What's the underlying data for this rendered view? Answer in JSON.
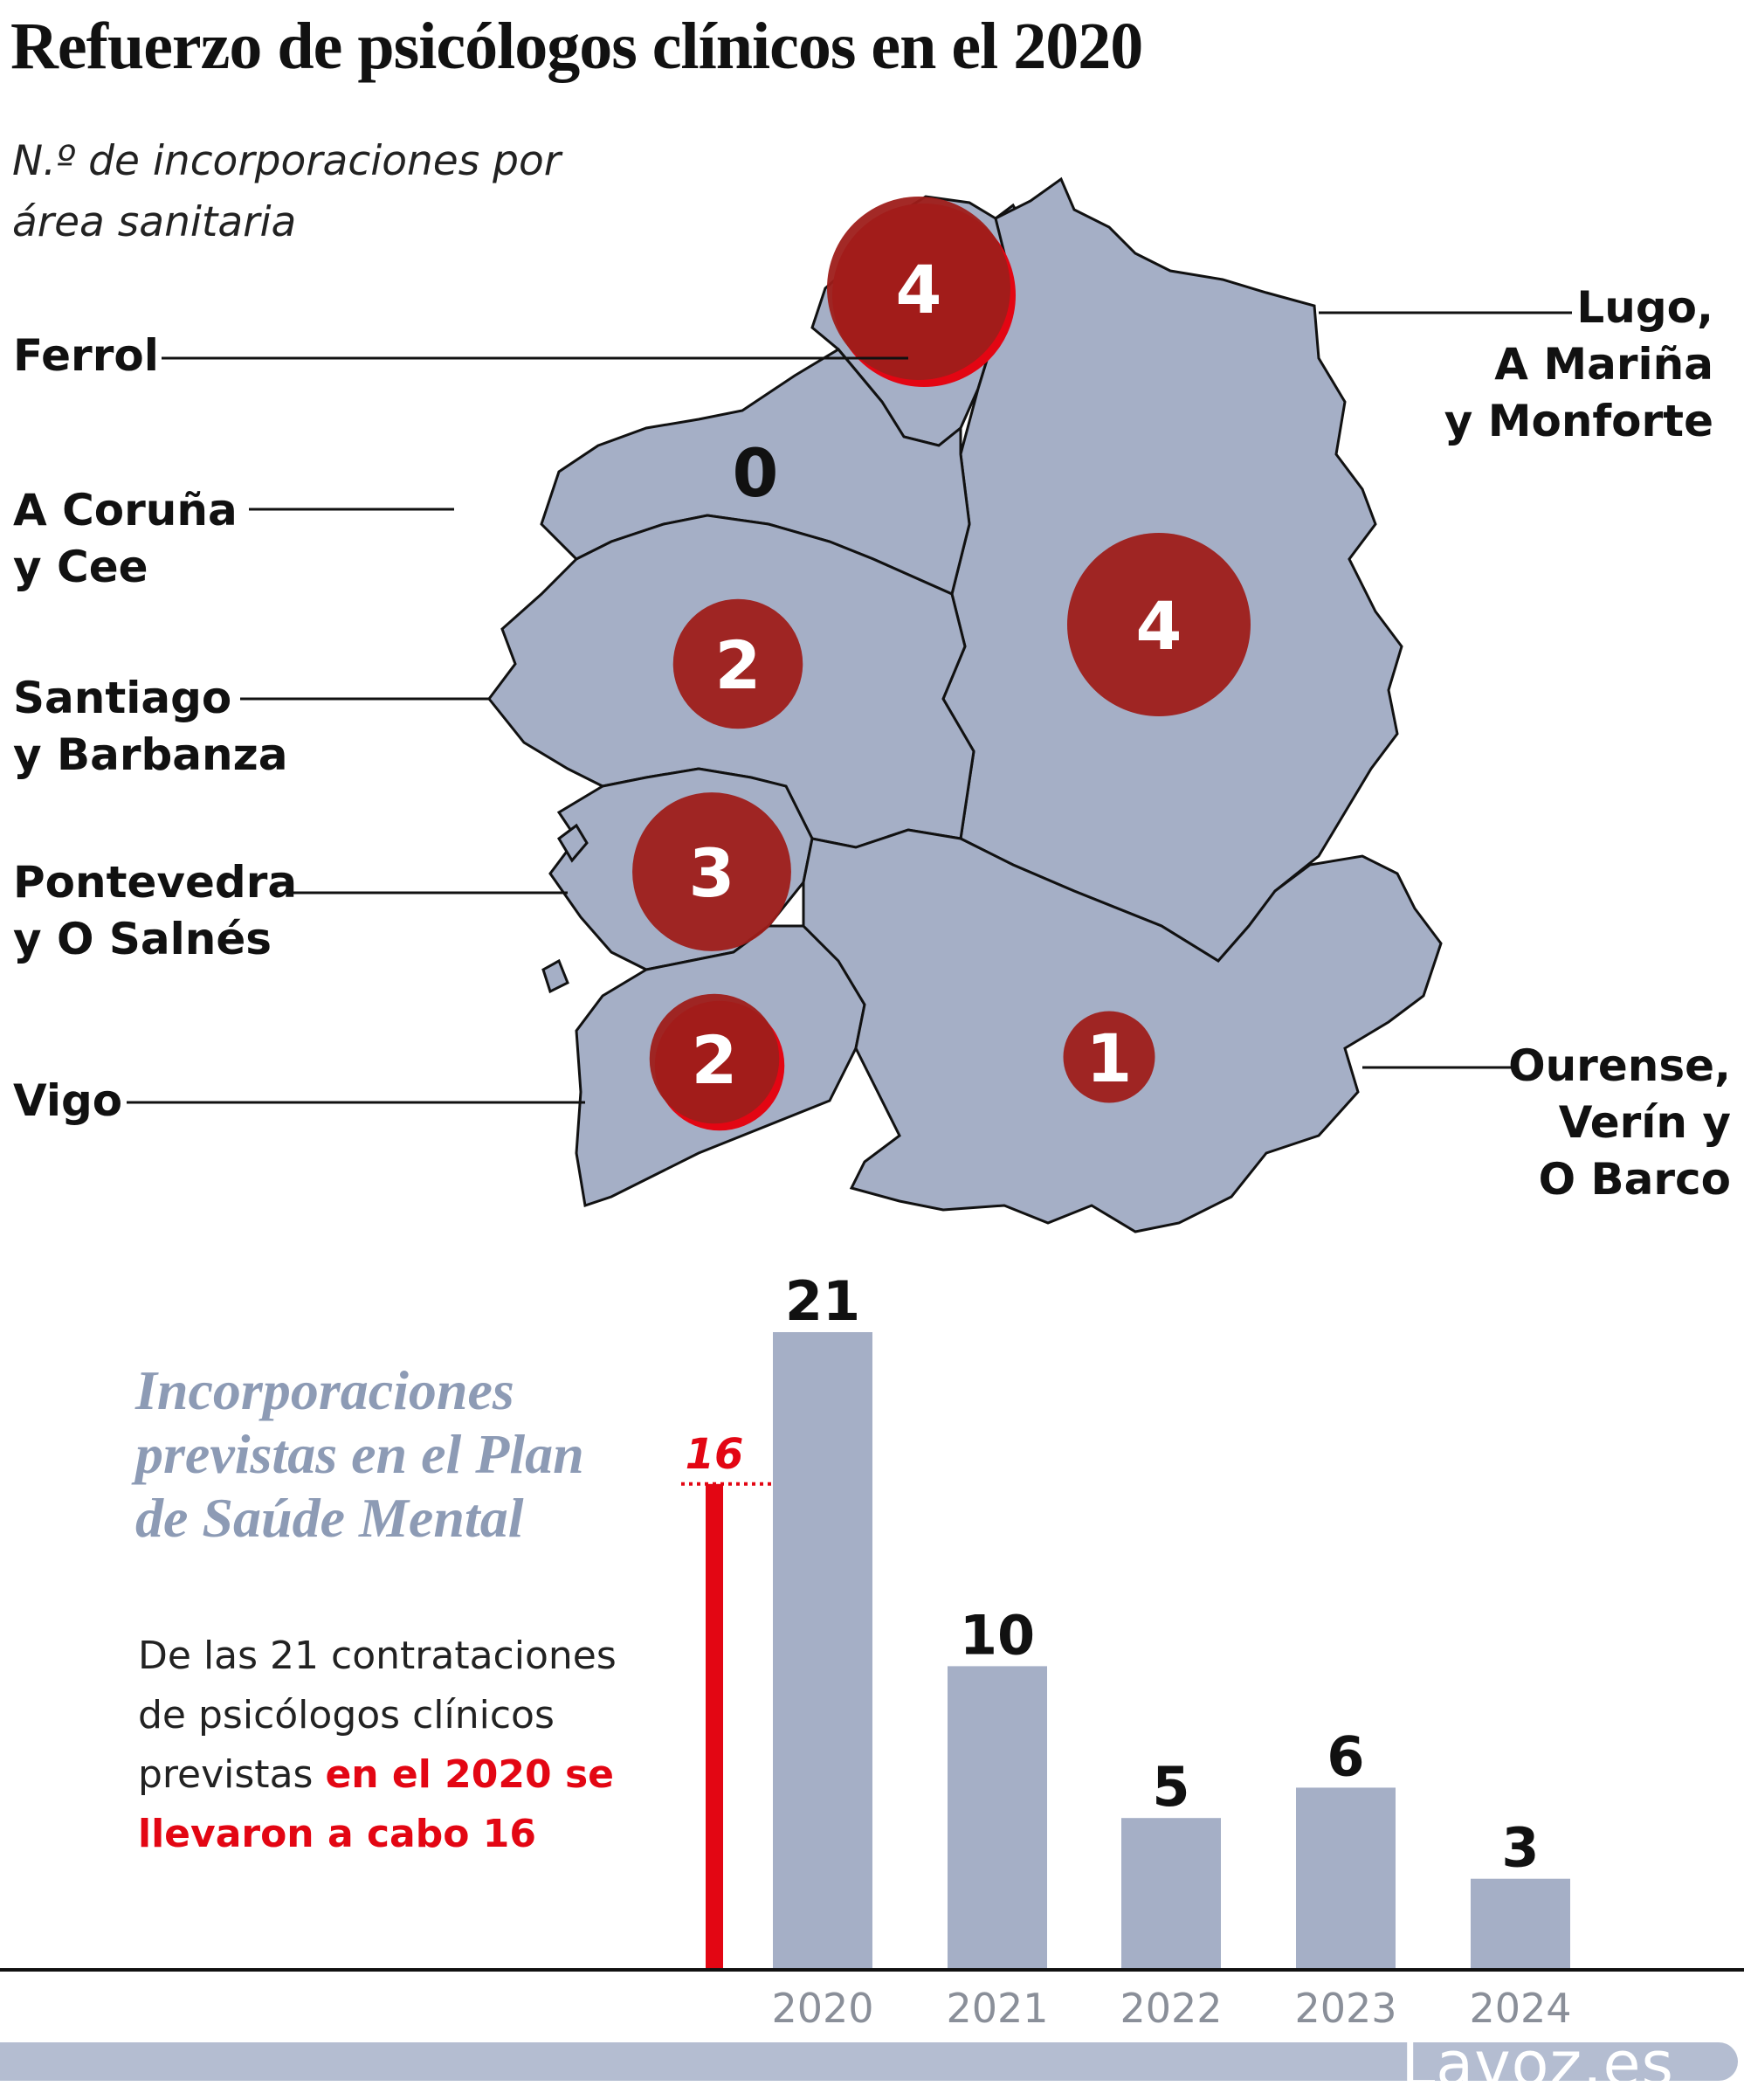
{
  "title": "Refuerzo de psicólogos clínicos en el 2020",
  "subtitle": "N.º de incorporaciones por área sanitaria",
  "colors": {
    "map_fill": "#a5afc6",
    "bubble": "#9e1d1a",
    "accent": "#e30613",
    "bar": "#a5afc6"
  },
  "map_areas": [
    {
      "label_lines": [
        "Ferrol"
      ],
      "value": 4
    },
    {
      "label_lines": [
        "A Coruña",
        "y Cee"
      ],
      "value": 0
    },
    {
      "label_lines": [
        "Santiago",
        "y Barbanza"
      ],
      "value": 2
    },
    {
      "label_lines": [
        "Pontevedra",
        "y O Salnés"
      ],
      "value": 3
    },
    {
      "label_lines": [
        "Vigo"
      ],
      "value": 2
    },
    {
      "label_lines": [
        "Lugo,",
        "A Mariña",
        "y Monforte"
      ],
      "value": 4
    },
    {
      "label_lines": [
        "Ourense,",
        "Verín y",
        "O Barco"
      ],
      "value": 1
    }
  ],
  "plan": {
    "title": "Incorporaciones previstas en el Plan de Saúde Mental",
    "text_plain": "De las 21 contrataciones de psicólogos clínicos previstas ",
    "text_highlight": "en el 2020 se llevaron a cabo 16"
  },
  "chart_data": {
    "type": "bar",
    "categories": [
      "2020",
      "2021",
      "2022",
      "2023",
      "2024"
    ],
    "values": [
      21,
      10,
      5,
      6,
      3
    ],
    "title": "Incorporaciones previstas en el Plan de Saúde Mental",
    "xlabel": "",
    "ylabel": "",
    "ylim": [
      0,
      21
    ],
    "grid": false,
    "annotations": [
      {
        "label": "16",
        "value": 16,
        "category": "2020",
        "note": "llevadas a cabo en el 2020"
      }
    ]
  },
  "footer": {
    "logo": "Lavoz.es"
  }
}
